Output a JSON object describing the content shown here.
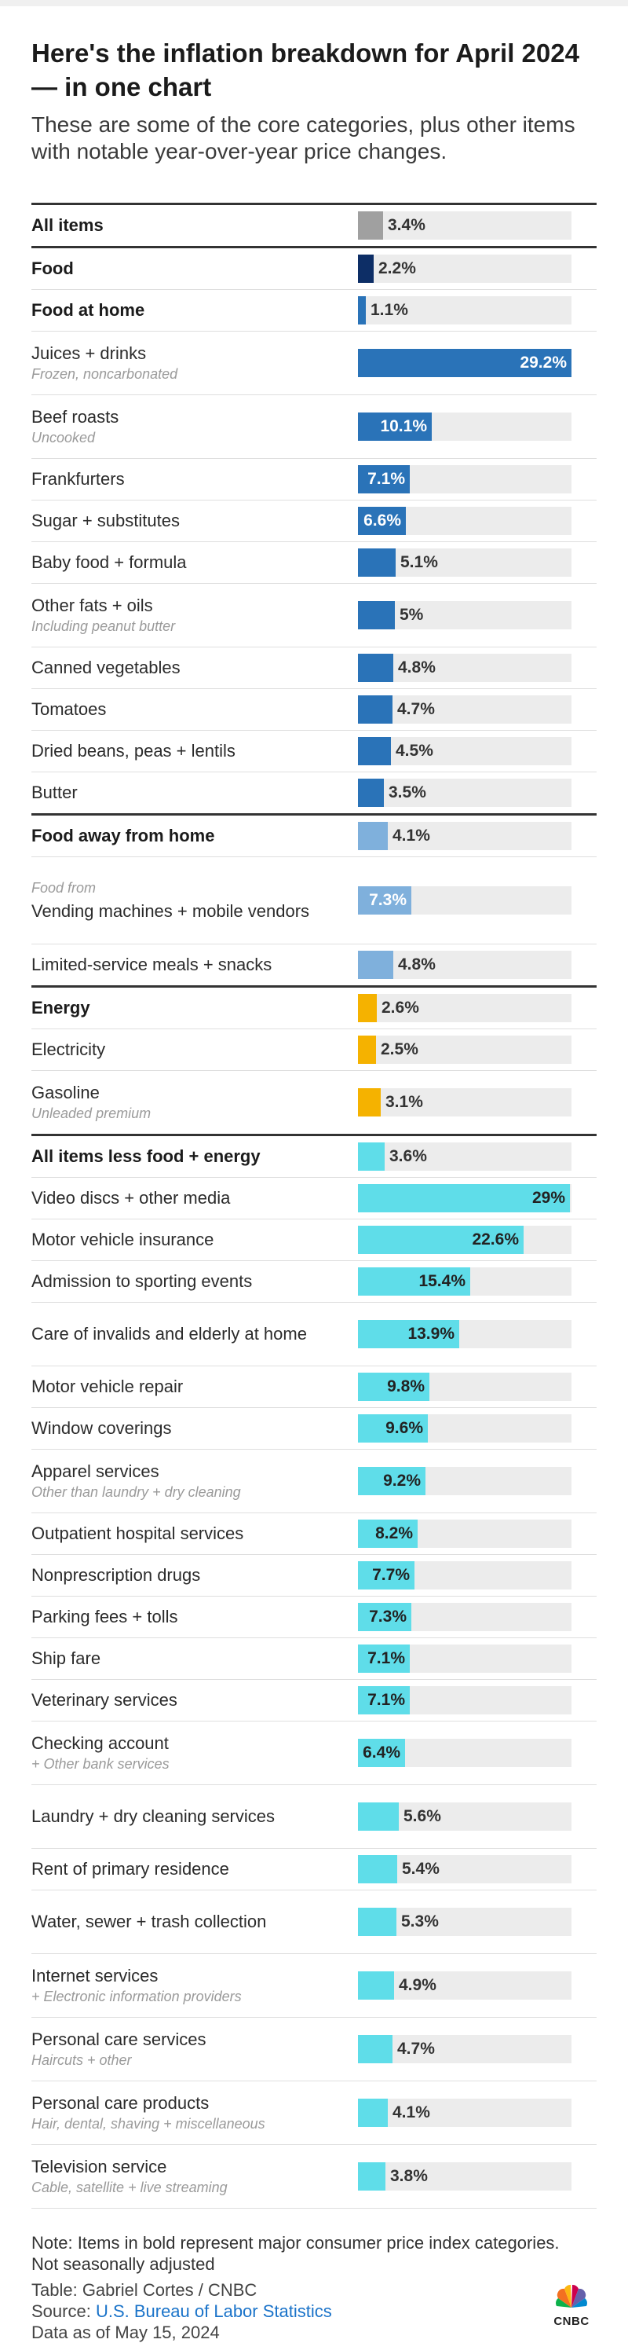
{
  "header": {
    "title": "Here's the inflation breakdown for April 2024 — in one chart",
    "subtitle": "These are some of the core categories, plus other items with notable year-over-year price changes."
  },
  "colors": {
    "all_items": "#a0a0a0",
    "food": "#0d2e66",
    "food_at_home": "#2a73b8",
    "food_away": "#7fb0dc",
    "energy": "#f5b200",
    "core": "#5fdde9",
    "track": "#ececec"
  },
  "chart_data": {
    "type": "bar",
    "orientation": "horizontal",
    "unit": "%",
    "xlim": [
      0,
      29.2
    ],
    "rows": [
      {
        "label": "All items",
        "sub": "",
        "pre": "",
        "value": 3.4,
        "value_label": "3.4%",
        "group": "all_items",
        "bold": true,
        "end": true
      },
      {
        "label": "Food",
        "sub": "",
        "pre": "",
        "value": 2.2,
        "value_label": "2.2%",
        "group": "food",
        "bold": true
      },
      {
        "label": "Food at home",
        "sub": "",
        "pre": "",
        "value": 1.1,
        "value_label": "1.1%",
        "group": "food_at_home",
        "bold": true
      },
      {
        "label": "Juices + drinks",
        "sub": "Frozen, noncarbonated",
        "pre": "",
        "value": 29.2,
        "value_label": "29.2%",
        "group": "food_at_home"
      },
      {
        "label": "Beef roasts",
        "sub": "Uncooked",
        "pre": "",
        "value": 10.1,
        "value_label": "10.1%",
        "group": "food_at_home"
      },
      {
        "label": "Frankfurters",
        "sub": "",
        "pre": "",
        "value": 7.1,
        "value_label": "7.1%",
        "group": "food_at_home"
      },
      {
        "label": "Sugar + substitutes",
        "sub": "",
        "pre": "",
        "value": 6.6,
        "value_label": "6.6%",
        "group": "food_at_home"
      },
      {
        "label": "Baby food + formula",
        "sub": "",
        "pre": "",
        "value": 5.1,
        "value_label": "5.1%",
        "group": "food_at_home"
      },
      {
        "label": "Other fats + oils",
        "sub": "Including peanut butter",
        "pre": "",
        "value": 5.0,
        "value_label": "5%",
        "group": "food_at_home"
      },
      {
        "label": "Canned vegetables",
        "sub": "",
        "pre": "",
        "value": 4.8,
        "value_label": "4.8%",
        "group": "food_at_home"
      },
      {
        "label": "Tomatoes",
        "sub": "",
        "pre": "",
        "value": 4.7,
        "value_label": "4.7%",
        "group": "food_at_home"
      },
      {
        "label": "Dried beans, peas + lentils",
        "sub": "",
        "pre": "",
        "value": 4.5,
        "value_label": "4.5%",
        "group": "food_at_home"
      },
      {
        "label": "Butter",
        "sub": "",
        "pre": "",
        "value": 3.5,
        "value_label": "3.5%",
        "group": "food_at_home",
        "end": true
      },
      {
        "label": "Food away from home",
        "sub": "",
        "pre": "",
        "value": 4.1,
        "value_label": "4.1%",
        "group": "food_away",
        "bold": true
      },
      {
        "label": "Vending machines + mobile vendors",
        "sub": "",
        "pre": "Food from",
        "value": 7.3,
        "value_label": "7.3%",
        "group": "food_away"
      },
      {
        "label": "Limited-service meals + snacks",
        "sub": "",
        "pre": "",
        "value": 4.8,
        "value_label": "4.8%",
        "group": "food_away",
        "end": true
      },
      {
        "label": "Energy",
        "sub": "",
        "pre": "",
        "value": 2.6,
        "value_label": "2.6%",
        "group": "energy",
        "bold": true
      },
      {
        "label": "Electricity",
        "sub": "",
        "pre": "",
        "value": 2.5,
        "value_label": "2.5%",
        "group": "energy"
      },
      {
        "label": "Gasoline",
        "sub": "Unleaded premium",
        "pre": "",
        "value": 3.1,
        "value_label": "3.1%",
        "group": "energy",
        "end": true
      },
      {
        "label": "All items less food + energy",
        "sub": "",
        "pre": "",
        "value": 3.6,
        "value_label": "3.6%",
        "group": "core",
        "bold": true
      },
      {
        "label": "Video discs + other media",
        "sub": "",
        "pre": "",
        "value": 29.0,
        "value_label": "29%",
        "group": "core"
      },
      {
        "label": "Motor vehicle insurance",
        "sub": "",
        "pre": "",
        "value": 22.6,
        "value_label": "22.6%",
        "group": "core"
      },
      {
        "label": "Admission to sporting events",
        "sub": "",
        "pre": "",
        "value": 15.4,
        "value_label": "15.4%",
        "group": "core"
      },
      {
        "label": "Care of invalids and elderly at home",
        "sub": "",
        "pre": "",
        "value": 13.9,
        "value_label": "13.9%",
        "group": "core"
      },
      {
        "label": "Motor vehicle repair",
        "sub": "",
        "pre": "",
        "value": 9.8,
        "value_label": "9.8%",
        "group": "core"
      },
      {
        "label": "Window coverings",
        "sub": "",
        "pre": "",
        "value": 9.6,
        "value_label": "9.6%",
        "group": "core"
      },
      {
        "label": "Apparel services",
        "sub": "Other than laundry + dry cleaning",
        "pre": "",
        "value": 9.2,
        "value_label": "9.2%",
        "group": "core"
      },
      {
        "label": "Outpatient hospital services",
        "sub": "",
        "pre": "",
        "value": 8.2,
        "value_label": "8.2%",
        "group": "core"
      },
      {
        "label": "Nonprescription drugs",
        "sub": "",
        "pre": "",
        "value": 7.7,
        "value_label": "7.7%",
        "group": "core"
      },
      {
        "label": "Parking fees + tolls",
        "sub": "",
        "pre": "",
        "value": 7.3,
        "value_label": "7.3%",
        "group": "core"
      },
      {
        "label": "Ship fare",
        "sub": "",
        "pre": "",
        "value": 7.1,
        "value_label": "7.1%",
        "group": "core"
      },
      {
        "label": "Veterinary services",
        "sub": "",
        "pre": "",
        "value": 7.1,
        "value_label": "7.1%",
        "group": "core"
      },
      {
        "label": "Checking account",
        "sub": "+ Other bank services",
        "pre": "",
        "value": 6.4,
        "value_label": "6.4%",
        "group": "core"
      },
      {
        "label": "Laundry + dry cleaning services",
        "sub": "",
        "pre": "",
        "value": 5.6,
        "value_label": "5.6%",
        "group": "core"
      },
      {
        "label": "Rent of primary residence",
        "sub": "",
        "pre": "",
        "value": 5.4,
        "value_label": "5.4%",
        "group": "core"
      },
      {
        "label": "Water, sewer + trash collection",
        "sub": "",
        "pre": "",
        "value": 5.3,
        "value_label": "5.3%",
        "group": "core"
      },
      {
        "label": "Internet services",
        "sub": "+ Electronic information providers",
        "pre": "",
        "value": 4.9,
        "value_label": "4.9%",
        "group": "core"
      },
      {
        "label": "Personal care services",
        "sub": "Haircuts + other",
        "pre": "",
        "value": 4.7,
        "value_label": "4.7%",
        "group": "core"
      },
      {
        "label": "Personal care products",
        "sub": "Hair, dental, shaving + miscellaneous",
        "pre": "",
        "value": 4.1,
        "value_label": "4.1%",
        "group": "core"
      },
      {
        "label": "Television service",
        "sub": "Cable, satellite + live streaming",
        "pre": "",
        "value": 3.8,
        "value_label": "3.8%",
        "group": "core"
      }
    ]
  },
  "footer": {
    "note": "Note: Items in bold represent major consumer price index categories.",
    "adjust": "Not seasonally adjusted",
    "table_credit": "Table: Gabriel Cortes / CNBC",
    "source_prefix": "Source: ",
    "source_link": "U.S. Bureau of Labor Statistics",
    "data_date": "Data as of May 15, 2024",
    "logo_text": "CNBC"
  }
}
